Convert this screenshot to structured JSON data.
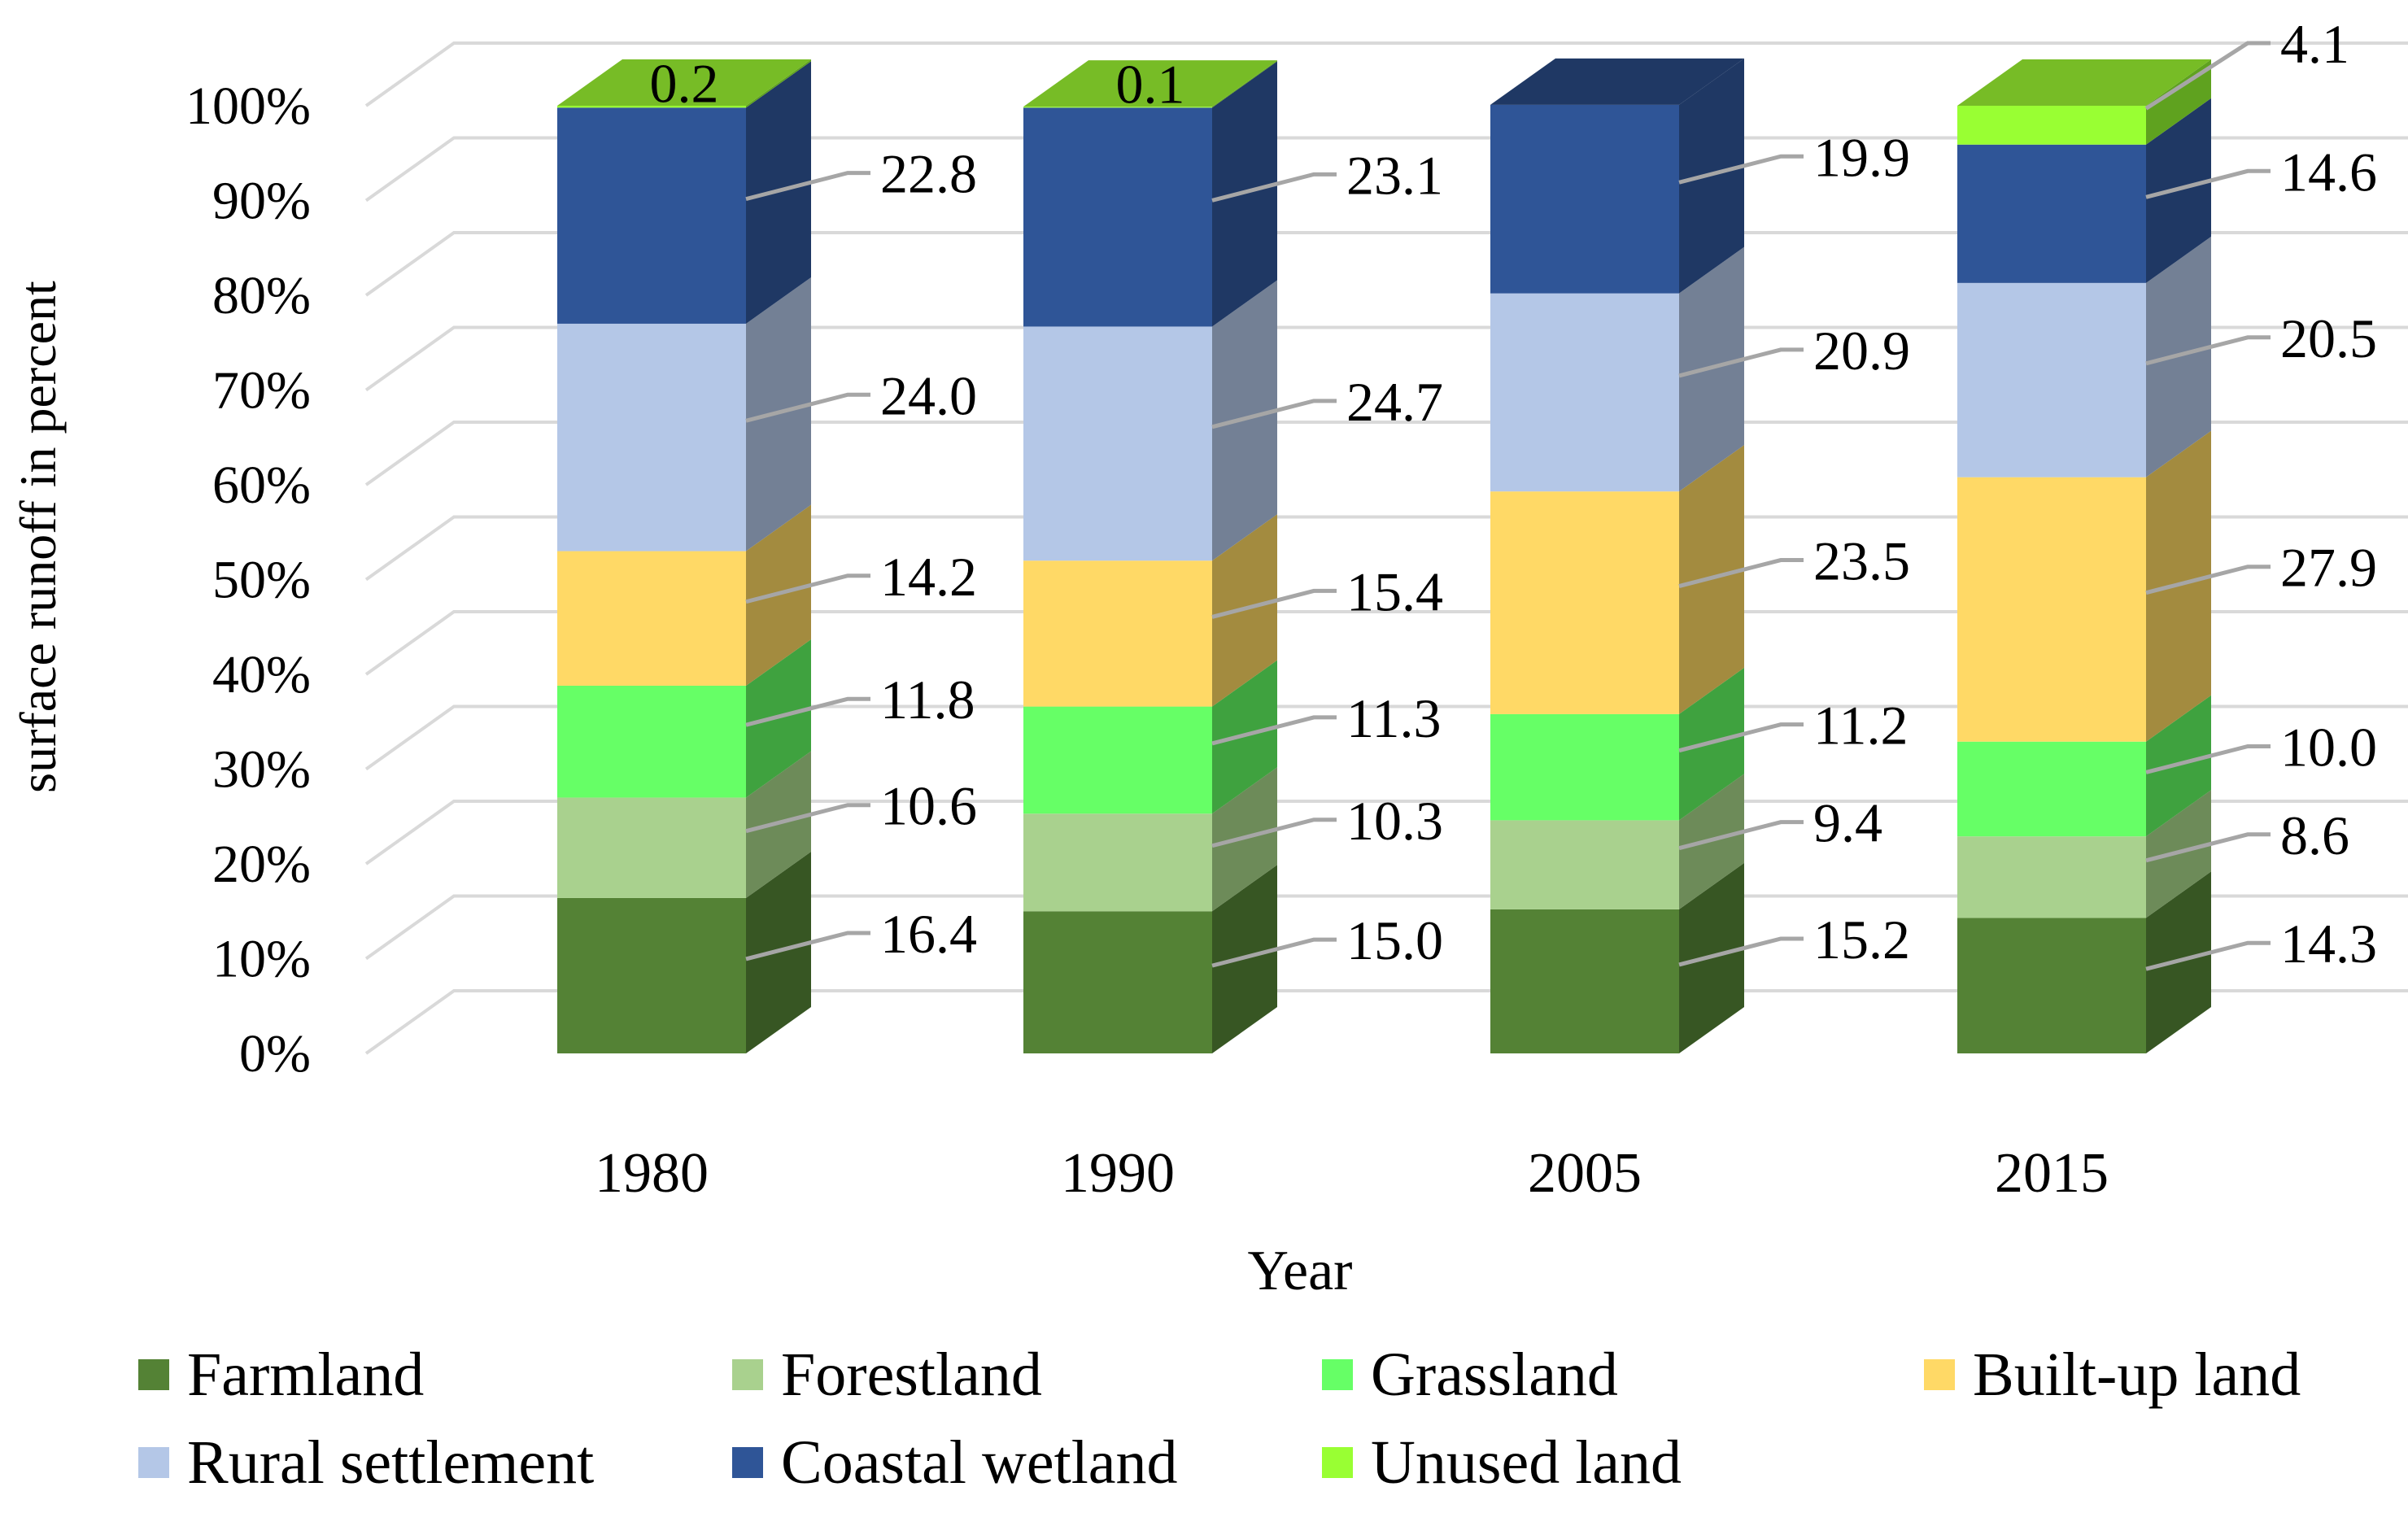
{
  "chart_data": {
    "type": "bar",
    "stacked": true,
    "percent": true,
    "three_d": true,
    "title": "",
    "xlabel": "Year",
    "ylabel": "surface runoff in percent",
    "ylim": [
      0,
      100
    ],
    "ytick_labels": [
      "0%",
      "10%",
      "20%",
      "30%",
      "40%",
      "50%",
      "60%",
      "70%",
      "80%",
      "90%",
      "100%"
    ],
    "categories": [
      "1980",
      "1990",
      "2005",
      "2015"
    ],
    "legend_position": "bottom",
    "series": [
      {
        "name": "Farmland",
        "color": "#548235",
        "side_color": "#375623",
        "values": [
          16.4,
          15.0,
          15.2,
          14.3
        ],
        "labels": [
          "16.4",
          "15.0",
          "15.2",
          "14.3"
        ]
      },
      {
        "name": "Forestland",
        "color": "#a9d18e",
        "side_color": "#6d8b59",
        "values": [
          10.6,
          10.3,
          9.4,
          8.6
        ],
        "labels": [
          "10.6",
          "10.3",
          "9.4",
          "8.6"
        ]
      },
      {
        "name": "Grassland",
        "color": "#66ff66",
        "side_color": "#3fa23f",
        "values": [
          11.8,
          11.3,
          11.2,
          10.0
        ],
        "labels": [
          "11.8",
          "11.3",
          "11.2",
          "10.0"
        ]
      },
      {
        "name": "Built-up land",
        "color": "#ffd966",
        "side_color": "#a38b3f",
        "values": [
          14.2,
          15.4,
          23.5,
          27.9
        ],
        "labels": [
          "14.2",
          "15.4",
          "23.5",
          "27.9"
        ]
      },
      {
        "name": "Rural settlement",
        "color": "#b4c7e7",
        "side_color": "#738095",
        "values": [
          24.0,
          24.7,
          20.9,
          20.5
        ],
        "labels": [
          "24.0",
          "24.7",
          "20.9",
          "20.5"
        ]
      },
      {
        "name": "Coastal wetland",
        "color": "#2f5597",
        "side_color": "#1f3864",
        "values": [
          22.8,
          23.1,
          19.9,
          14.6
        ],
        "labels": [
          "22.8",
          "23.1",
          "19.9",
          "14.6"
        ]
      },
      {
        "name": "Unused land",
        "color": "#99ff33",
        "side_color": "#5fa21f",
        "values": [
          0.2,
          0.1,
          0.0,
          4.1
        ],
        "labels": [
          "0.2",
          "0.1",
          "",
          "4.1"
        ]
      }
    ],
    "top_face_color": "#77bc26",
    "grid_color": "#d9d9d9",
    "leader_color": "#a6a6a6"
  }
}
